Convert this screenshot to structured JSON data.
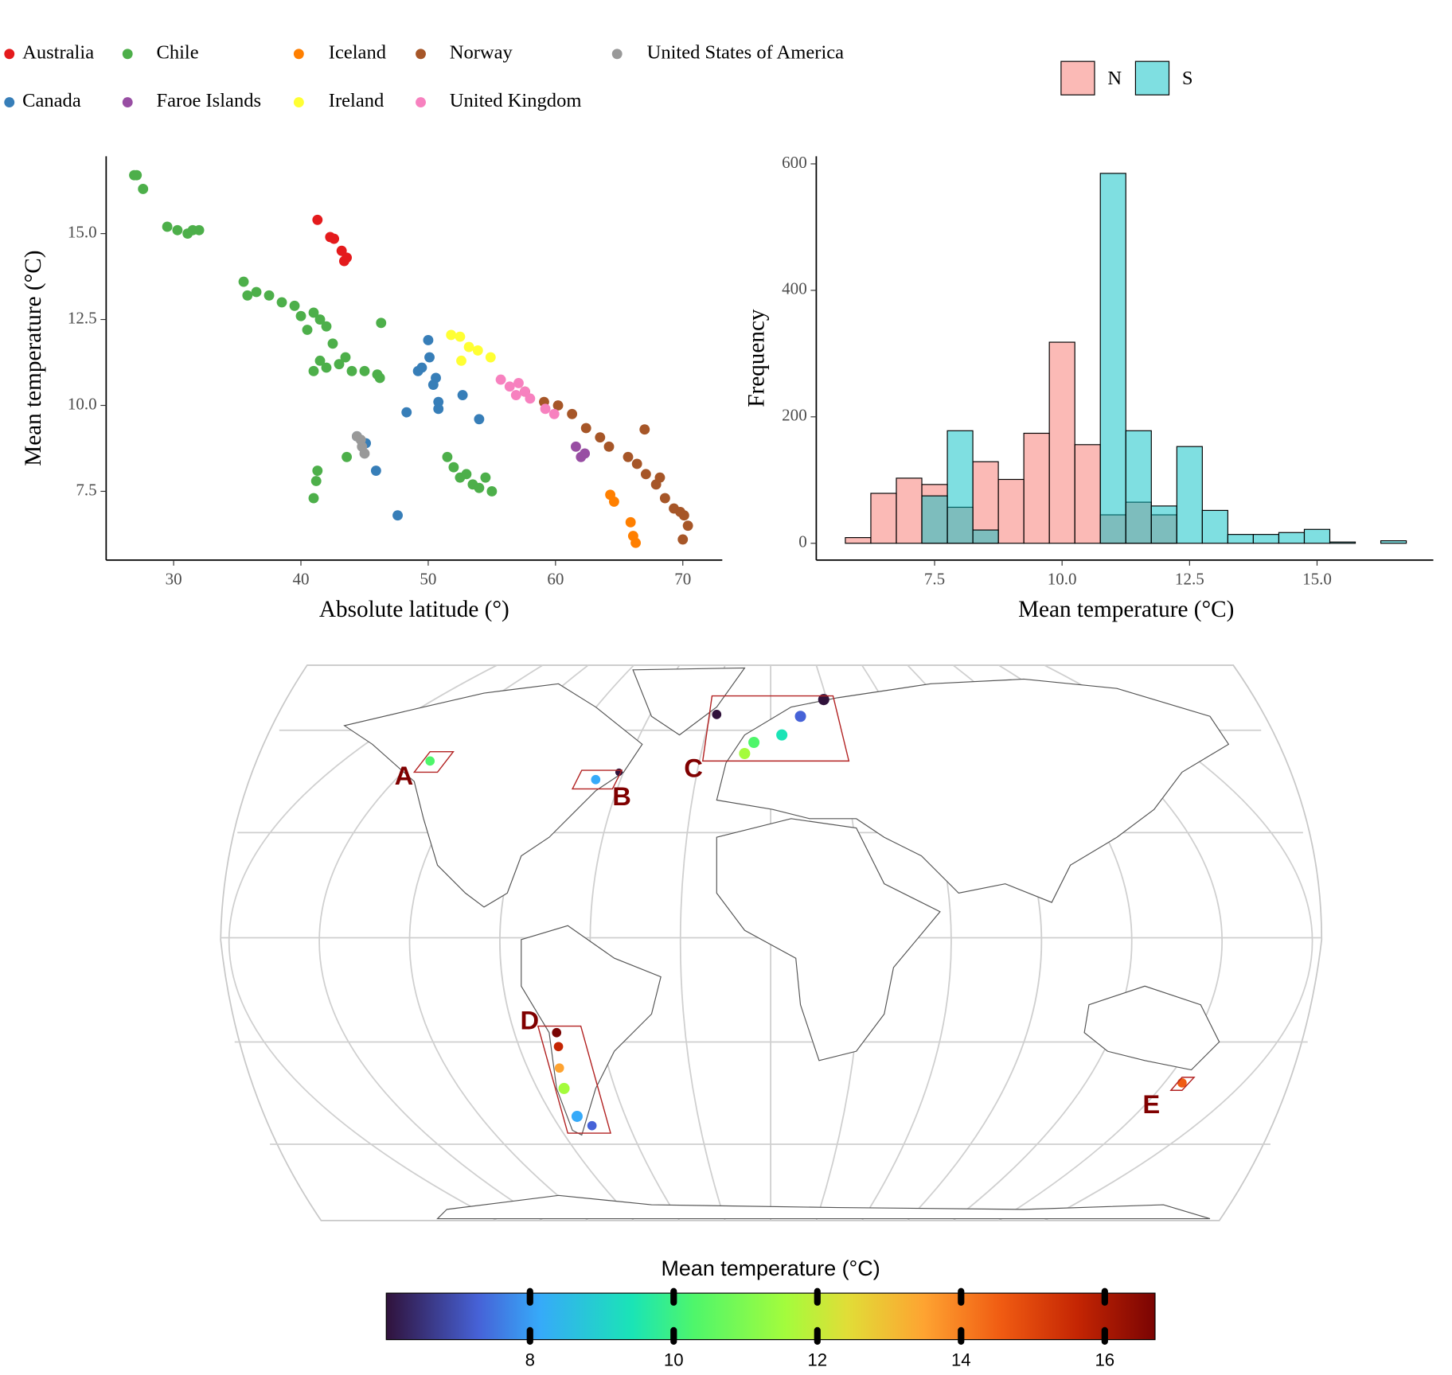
{
  "chart_data": [
    {
      "type": "scatter",
      "xlabel": "Absolute latitude (°)",
      "ylabel": "Mean temperature (°C)",
      "xlim": [
        24.7,
        73.1
      ],
      "ylim": [
        5.5,
        17.25
      ],
      "xticks": [
        30,
        40,
        50,
        60,
        70
      ],
      "yticks": [
        7.5,
        {
          "value": 10,
          "label": "10.0"
        },
        12.5,
        {
          "value": 15,
          "label": "15.0"
        }
      ],
      "series": [
        {
          "name": "Australia",
          "color": "#e41a1c",
          "x": [
            41.3,
            42.3,
            42.6,
            43.2,
            43.4,
            43.6
          ],
          "values": [
            15.4,
            14.9,
            14.85,
            14.5,
            14.2,
            14.3
          ]
        },
        {
          "name": "Canada",
          "color": "#377eb8",
          "x": [
            50.0,
            50.1,
            49.2,
            50.6,
            50.8,
            52.7,
            48.3,
            54.0,
            44.4,
            45.1,
            45.9,
            47.6,
            50.8,
            50.4,
            49.5
          ],
          "values": [
            11.9,
            11.4,
            11.0,
            10.8,
            10.1,
            10.3,
            9.8,
            9.6,
            9.1,
            8.9,
            8.1,
            6.8,
            9.9,
            10.6,
            11.1
          ]
        },
        {
          "name": "Chile",
          "color": "#4daf4a",
          "x": [
            26.9,
            27.1,
            27.6,
            29.5,
            30.3,
            31.1,
            31.5,
            32.0,
            35.5,
            35.8,
            36.5,
            37.5,
            38.5,
            39.5,
            40.0,
            40.5,
            41.0,
            41.5,
            42.0,
            42.5,
            41.0,
            41.5,
            42.0,
            43.0,
            44.0,
            45.0,
            46.0,
            46.2,
            46.3,
            43.5,
            41.0,
            41.2,
            41.3,
            43.6,
            51.5,
            52.0,
            52.5,
            53.0,
            53.5,
            54.0,
            55.0,
            54.5
          ],
          "values": [
            16.7,
            16.7,
            16.3,
            15.2,
            15.1,
            15.0,
            15.1,
            15.1,
            13.6,
            13.2,
            13.3,
            13.2,
            13.0,
            12.9,
            12.6,
            12.2,
            12.7,
            12.5,
            12.3,
            11.8,
            11.0,
            11.3,
            11.1,
            11.2,
            11.0,
            11.0,
            10.9,
            10.8,
            12.4,
            11.4,
            7.3,
            7.8,
            8.1,
            8.5,
            8.5,
            8.2,
            7.9,
            8.0,
            7.7,
            7.6,
            7.5,
            7.9
          ]
        },
        {
          "name": "Faroe Islands",
          "color": "#984ea3",
          "x": [
            61.6,
            62.0,
            62.3
          ],
          "values": [
            8.8,
            8.5,
            8.6
          ]
        },
        {
          "name": "Iceland",
          "color": "#ff7f00",
          "x": [
            64.3,
            64.6,
            65.9,
            66.3,
            66.1
          ],
          "values": [
            7.4,
            7.2,
            6.6,
            6.0,
            6.2
          ]
        },
        {
          "name": "Ireland",
          "color": "#ffff33",
          "x": [
            51.8,
            52.5,
            53.2,
            53.9,
            54.9,
            52.6
          ],
          "values": [
            12.05,
            12.0,
            11.7,
            11.6,
            11.4,
            11.3
          ]
        },
        {
          "name": "Norway",
          "color": "#a65628",
          "x": [
            57.6,
            59.1,
            60.2,
            61.3,
            62.4,
            63.5,
            64.2,
            65.7,
            66.4,
            67.1,
            67.9,
            68.6,
            69.3,
            70.1,
            70.4,
            70.0,
            67.0,
            68.2,
            69.8
          ],
          "values": [
            10.4,
            10.1,
            10.0,
            9.75,
            9.34,
            9.07,
            8.8,
            8.5,
            8.3,
            8.0,
            7.7,
            7.3,
            7.0,
            6.8,
            6.5,
            6.1,
            9.3,
            7.9,
            6.9
          ]
        },
        {
          "name": "United Kingdom",
          "color": "#f781bf",
          "x": [
            55.7,
            56.4,
            57.1,
            57.6,
            58.0,
            59.2,
            59.9,
            56.9
          ],
          "values": [
            10.75,
            10.55,
            10.65,
            10.4,
            10.2,
            9.9,
            9.75,
            10.3
          ]
        },
        {
          "name": "United States of America",
          "color": "#999999",
          "x": [
            44.4,
            44.8,
            45.0,
            44.7
          ],
          "values": [
            9.1,
            8.8,
            8.6,
            9.0
          ]
        }
      ]
    },
    {
      "type": "histogram",
      "xlabel": "Mean temperature (°C)",
      "ylabel": "Frequency",
      "xlim": [
        5.18,
        17.28
      ],
      "ylim": [
        -26.5,
        612
      ],
      "xticks": [
        7.5,
        {
          "value": 10,
          "label": "10.0"
        },
        12.5,
        {
          "value": 15,
          "label": "15.0"
        }
      ],
      "yticks": [
        0,
        200,
        400,
        600
      ],
      "bins": [
        5.75,
        6.25,
        6.75,
        7.25,
        7.75,
        8.25,
        8.75,
        9.25,
        9.75,
        10.25,
        10.75,
        11.25,
        11.75,
        12.25,
        12.75,
        13.25,
        13.75,
        14.25,
        14.75,
        15.25,
        15.75,
        16.25,
        16.75
      ],
      "series": [
        {
          "name": "N",
          "color": "#f8766d",
          "values": [
            9,
            79,
            103,
            93,
            57,
            129,
            101,
            174,
            318,
            156,
            45,
            65,
            45,
            0,
            0,
            0,
            0,
            0,
            0,
            0,
            0,
            0
          ]
        },
        {
          "name": "S",
          "color": "#00bfc4",
          "values": [
            0,
            0,
            0,
            75,
            178,
            21,
            0,
            0,
            0,
            0,
            585,
            178,
            59,
            153,
            52,
            14,
            14,
            17,
            22,
            2,
            0,
            4
          ]
        }
      ]
    },
    {
      "type": "map",
      "regions": [
        "A",
        "B",
        "C",
        "D",
        "E"
      ],
      "colorbar": {
        "title": "Mean temperature (°C)",
        "lim": [
          6.0,
          16.7
        ],
        "ticks": [
          8,
          10,
          12,
          14,
          16
        ]
      }
    }
  ]
}
